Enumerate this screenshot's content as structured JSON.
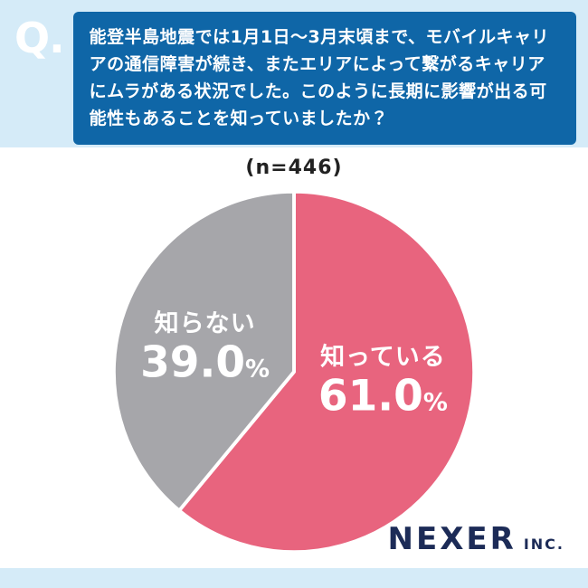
{
  "header": {
    "q_label": "Q.",
    "question": "能登半島地震では1月1日〜3月末頃まで、モバイルキャリアの通信障害が続き、またエリアによって繋がるキャリアにムラがある状況でした。このように長期に影響が出る可能性もあることを知っていましたか？"
  },
  "chart_data": {
    "type": "pie",
    "n_label": "(n=446)",
    "start_angle_deg": -90,
    "direction": "clockwise",
    "gap_color": "#ffffff",
    "gap_width": 4,
    "legend_position": "inside",
    "slices": [
      {
        "label": "知っている",
        "value": 61.0,
        "display": "61.0",
        "unit": "%",
        "color": "#e8647e",
        "text_color": "#ffffff",
        "label_pos": {
          "x": 74,
          "y": 52
        }
      },
      {
        "label": "知らない",
        "value": 39.0,
        "display": "39.0",
        "unit": "%",
        "color": "#a6a6aa",
        "text_color": "#ffffff",
        "label_pos": {
          "x": 26,
          "y": 43
        }
      }
    ]
  },
  "footer": {
    "brand": "NEXER",
    "brand_suffix": "INC."
  },
  "colors": {
    "background": "#d5ebf8",
    "question_box": "#0f66a7",
    "panel": "#ffffff",
    "brand": "#1c2b57"
  }
}
